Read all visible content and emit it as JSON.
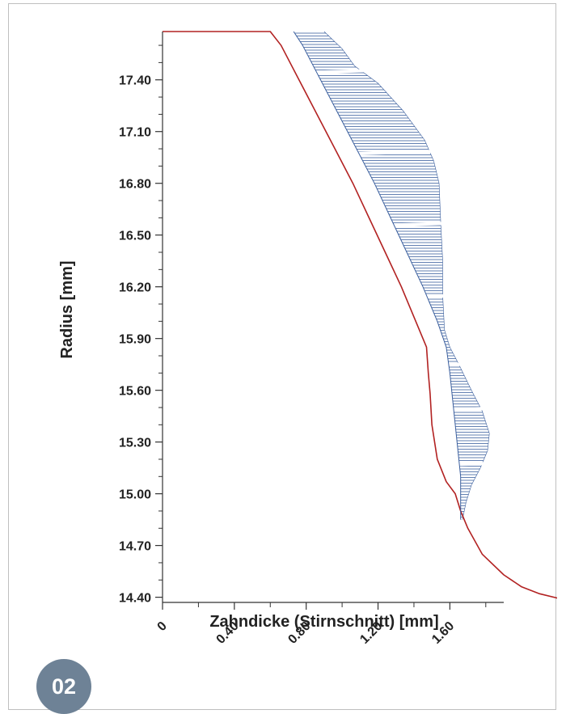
{
  "figure": {
    "badge": "02"
  },
  "chart_data": {
    "type": "line",
    "xlabel": "Zahndicke (Stirnschnitt)  [mm]",
    "ylabel": "Radius [mm]",
    "xlim": [
      0,
      1.9
    ],
    "ylim": [
      14.37,
      17.68
    ],
    "xticks": [
      0,
      0.4,
      0.8,
      1.2,
      1.6
    ],
    "xtick_labels": [
      "0",
      "0.40",
      "0.80",
      "1.20",
      "1.60"
    ],
    "yticks": [
      14.4,
      14.7,
      15.0,
      15.3,
      15.6,
      15.9,
      16.2,
      16.5,
      16.8,
      17.1,
      17.4
    ],
    "ytick_labels": [
      "14.40",
      "14.70",
      "15.00",
      "15.30",
      "15.60",
      "15.90",
      "16.20",
      "16.50",
      "16.80",
      "17.10",
      "17.40"
    ],
    "colors": {
      "profile": "#b22222",
      "deviation": "#3b5f9e",
      "axis": "#333333"
    },
    "series": [
      {
        "kind": "line",
        "color": "#b22222",
        "points": [
          [
            0.0,
            17.68
          ],
          [
            0.6,
            17.68
          ],
          [
            0.66,
            17.6
          ],
          [
            0.76,
            17.4
          ],
          [
            0.86,
            17.2
          ],
          [
            0.96,
            17.0
          ],
          [
            1.06,
            16.8
          ],
          [
            1.15,
            16.6
          ],
          [
            1.24,
            16.4
          ],
          [
            1.33,
            16.2
          ],
          [
            1.41,
            16.0
          ],
          [
            1.47,
            15.85
          ],
          [
            1.48,
            15.7
          ],
          [
            1.49,
            15.58
          ],
          [
            1.5,
            15.4
          ],
          [
            1.53,
            15.2
          ],
          [
            1.58,
            15.07
          ],
          [
            1.63,
            15.0
          ],
          [
            1.66,
            14.9
          ],
          [
            1.7,
            14.8
          ],
          [
            1.78,
            14.65
          ],
          [
            1.9,
            14.53
          ],
          [
            2.0,
            14.46
          ],
          [
            2.1,
            14.42
          ],
          [
            2.22,
            14.39
          ]
        ]
      },
      {
        "kind": "line",
        "color": "#3b5f9e",
        "points": [
          [
            0.73,
            17.68
          ],
          [
            0.78,
            17.6
          ],
          [
            0.88,
            17.4
          ],
          [
            0.98,
            17.2
          ],
          [
            1.08,
            17.0
          ],
          [
            1.18,
            16.8
          ],
          [
            1.27,
            16.6
          ],
          [
            1.36,
            16.4
          ],
          [
            1.45,
            16.2
          ],
          [
            1.53,
            16.0
          ],
          [
            1.58,
            15.85
          ],
          [
            1.6,
            15.7
          ],
          [
            1.62,
            15.5
          ],
          [
            1.64,
            15.3
          ],
          [
            1.66,
            15.1
          ],
          [
            1.66,
            14.95
          ],
          [
            1.66,
            14.85
          ]
        ]
      },
      {
        "kind": "hatched-area",
        "color": "#3b5f9e",
        "outer": [
          [
            0.9,
            17.68
          ],
          [
            1.0,
            17.58
          ],
          [
            1.07,
            17.48
          ],
          [
            1.2,
            17.38
          ],
          [
            1.34,
            17.22
          ],
          [
            1.46,
            17.05
          ],
          [
            1.51,
            16.93
          ],
          [
            1.54,
            16.8
          ],
          [
            1.55,
            16.55
          ],
          [
            1.56,
            16.35
          ],
          [
            1.56,
            16.15
          ],
          [
            1.57,
            15.95
          ],
          [
            1.6,
            15.85
          ],
          [
            1.65,
            15.75
          ],
          [
            1.72,
            15.6
          ],
          [
            1.78,
            15.48
          ],
          [
            1.82,
            15.35
          ],
          [
            1.81,
            15.25
          ],
          [
            1.77,
            15.15
          ],
          [
            1.72,
            15.05
          ],
          [
            1.69,
            14.95
          ],
          [
            1.67,
            14.85
          ]
        ],
        "gap_levels": [
          17.45,
          16.97,
          16.55,
          16.13,
          15.73,
          15.47,
          15.15
        ]
      }
    ]
  }
}
